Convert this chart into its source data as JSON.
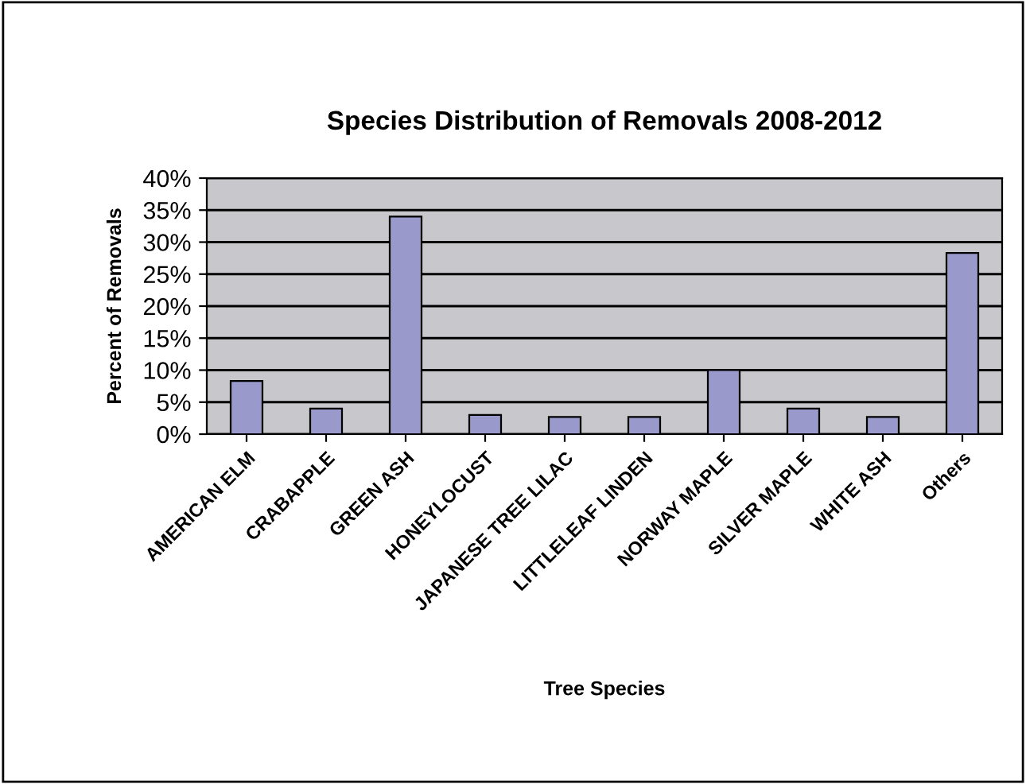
{
  "chart_data": {
    "type": "bar",
    "title": "Species Distribution of Removals 2008-2012",
    "xlabel": "Tree Species",
    "ylabel": "Percent of Removals",
    "categories": [
      "AMERICAN ELM",
      "CRABAPPLE",
      "GREEN ASH",
      "HONEYLOCUST",
      "JAPANESE TREE LILAC",
      "LITTLELEAF LINDEN",
      "NORWAY MAPLE",
      "SILVER MAPLE",
      "WHITE ASH",
      "Others"
    ],
    "values": [
      8.3,
      4,
      34,
      3,
      2.7,
      2.7,
      10,
      4,
      2.7,
      28.3
    ],
    "color": "#9999cc",
    "ylim": [
      0,
      40
    ],
    "yticks": [
      {
        "value": 0,
        "label": "0%"
      },
      {
        "value": 5,
        "label": "5%"
      },
      {
        "value": 10,
        "label": "10%"
      },
      {
        "value": 15,
        "label": "15%"
      },
      {
        "value": 20,
        "label": "20%"
      },
      {
        "value": 25,
        "label": "25%"
      },
      {
        "value": 30,
        "label": "30%"
      },
      {
        "value": 35,
        "label": "35%"
      },
      {
        "value": 40,
        "label": "40%"
      }
    ],
    "grid": "y",
    "legend": false
  }
}
